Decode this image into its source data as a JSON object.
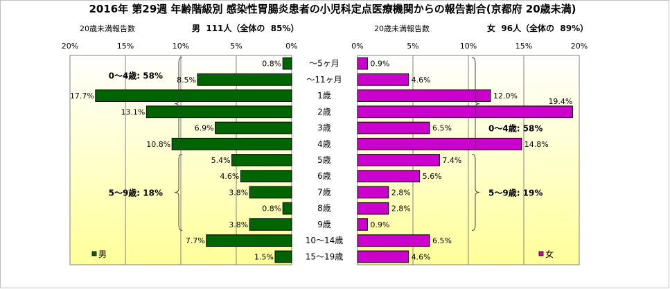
{
  "chart_data": {
    "type": "bar",
    "title": "2016年 第29週 年齢階級別 感染性胃腸炎患者の小児科定点医療機関からの報告割合(京都府 20歳未満)",
    "categories": [
      "～5ヶ月",
      "～11ヶ月",
      "1歳",
      "2歳",
      "3歳",
      "4歳",
      "5歳",
      "6歳",
      "7歳",
      "8歳",
      "9歳",
      "10～14歳",
      "15～19歳"
    ],
    "xlim": [
      0,
      20
    ],
    "ticks": [
      "0%",
      "5%",
      "10%",
      "15%",
      "20%"
    ],
    "colors": {
      "male": "#006400",
      "female": "#cc00cc",
      "plot_bg_top": "#ffffff",
      "plot_bg_bottom": "#ffff99"
    },
    "series": [
      {
        "name": "男",
        "values": [
          0.8,
          8.5,
          17.7,
          13.1,
          6.9,
          10.8,
          5.4,
          4.6,
          3.8,
          0.8,
          3.8,
          7.7,
          1.5
        ],
        "labels": [
          "0.8%",
          "8.5%",
          "17.7%",
          "13.1%",
          "6.9%",
          "10.8%",
          "5.4%",
          "4.6%",
          "3.8%",
          "0.8%",
          "3.8%",
          "7.7%",
          "1.5%"
        ],
        "header": {
          "left": "20歳未満報告数",
          "right": "男  111人（全体の  85%）"
        },
        "groups": [
          {
            "label": "0～4歳: 58%",
            "from": 0,
            "to": 5
          },
          {
            "label": "5～9歳: 18%",
            "from": 6,
            "to": 10
          }
        ]
      },
      {
        "name": "女",
        "values": [
          0.9,
          4.6,
          12.0,
          19.4,
          6.5,
          14.8,
          7.4,
          5.6,
          2.8,
          2.8,
          0.9,
          6.5,
          4.6
        ],
        "labels": [
          "0.9%",
          "4.6%",
          "12.0%",
          "19.4%",
          "6.5%",
          "14.8%",
          "7.4%",
          "5.6%",
          "2.8%",
          "2.8%",
          "0.9%",
          "6.5%",
          "4.6%"
        ],
        "header": {
          "left": "20歳未満報告数",
          "right": "女  96人（全体の  89%）"
        },
        "groups": [
          {
            "label": "0～4歳: 58%",
            "from": 0,
            "to": 5
          },
          {
            "label": "5～9歳: 19%",
            "from": 6,
            "to": 10
          }
        ]
      }
    ]
  }
}
